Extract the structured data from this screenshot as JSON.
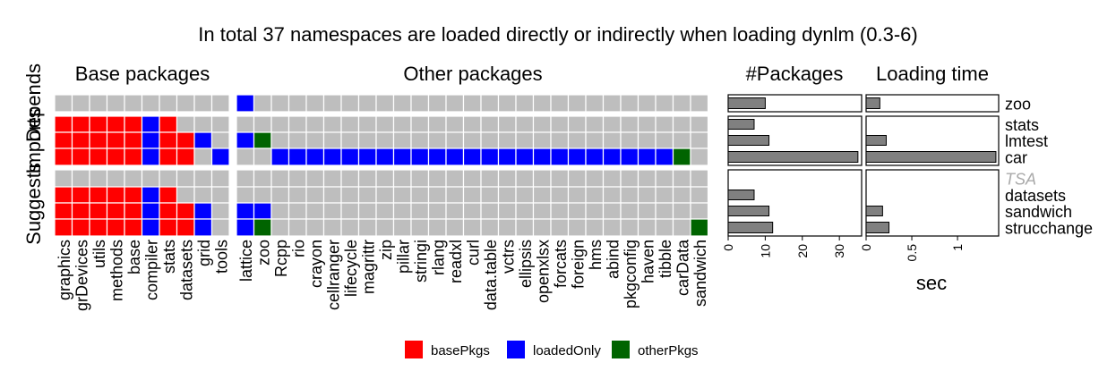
{
  "title": "In total 37 namespaces are loaded directly or indirectly when loading dynlm (0.3-6)",
  "colors": {
    "basePkgs": "#ff0000",
    "loadedOnly": "#0000ff",
    "otherPkgs": "#006400",
    "empty": "#bebebe",
    "bar": "#808080"
  },
  "chart_data": [
    {
      "type": "heatmap",
      "panels": [
        "Base packages",
        "Other packages"
      ],
      "row_groups": [
        "Depends",
        "Imports",
        "Suggests"
      ],
      "rows": [
        {
          "group": "Depends",
          "name": "zoo"
        },
        {
          "group": "Imports",
          "name": "stats"
        },
        {
          "group": "Imports",
          "name": "lmtest"
        },
        {
          "group": "Imports",
          "name": "car"
        },
        {
          "group": "Suggests",
          "name": "TSA"
        },
        {
          "group": "Suggests",
          "name": "datasets"
        },
        {
          "group": "Suggests",
          "name": "sandwich"
        },
        {
          "group": "Suggests",
          "name": "strucchange"
        }
      ],
      "base_columns": [
        "graphics",
        "grDevices",
        "utils",
        "methods",
        "base",
        "compiler",
        "stats",
        "datasets",
        "grid",
        "tools"
      ],
      "other_columns": [
        "lattice",
        "zoo",
        "Rcpp",
        "rio",
        "crayon",
        "cellranger",
        "lifecycle",
        "magrittr",
        "zip",
        "pillar",
        "stringi",
        "rlang",
        "readxl",
        "curl",
        "data.table",
        "vctrs",
        "ellipsis",
        "openxlsx",
        "forcats",
        "foreign",
        "hms",
        "abind",
        "pkgconfig",
        "haven",
        "tibble",
        "carData",
        "sandwich"
      ],
      "legend": [
        "basePkgs",
        "loadedOnly",
        "otherPkgs"
      ],
      "base_cells": [
        "0000000000",
        "BBBBBLB000",
        "BBBBBLBBL0",
        "BBBBBLBB0L",
        "0000000000",
        "BBBBBLB000",
        "BBBBBLBBL0",
        "BBBBBLBBL0"
      ],
      "other_cells": [
        "L00000000000000000000000000",
        "000000000000000000000000000",
        "LO0000000000000000000000000",
        "00LLLLLLLLLLLLLLLLLLLLLLLO0",
        "000000000000000000000000000",
        "000000000000000000000000000",
        "LL0000000000000000000000000",
        "LO000000000000000000000000O"
      ]
    },
    {
      "type": "bar",
      "title": "#Packages",
      "categories": [
        "zoo",
        "stats",
        "lmtest",
        "car",
        "TSA",
        "datasets",
        "sandwich",
        "strucchange"
      ],
      "values": [
        10,
        7,
        11,
        35,
        0,
        7,
        11,
        12
      ],
      "xlim": [
        0,
        36
      ],
      "ticks": [
        0,
        10,
        20,
        30
      ]
    },
    {
      "type": "bar",
      "title": "Loading time",
      "xlabel": "sec",
      "categories": [
        "zoo",
        "stats",
        "lmtest",
        "car",
        "TSA",
        "datasets",
        "sandwich",
        "strucchange"
      ],
      "values": [
        0.15,
        0,
        0.22,
        1.42,
        0,
        0,
        0.18,
        0.25
      ],
      "xlim": [
        0,
        1.45
      ],
      "ticks": [
        "0",
        "0.5",
        "1"
      ],
      "tick_values": [
        0,
        0.5,
        1
      ]
    }
  ]
}
